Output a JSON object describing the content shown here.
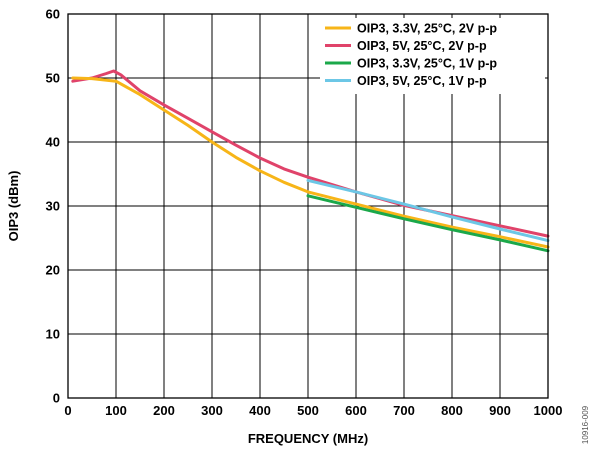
{
  "chart_data": {
    "type": "line",
    "xlabel": "FREQUENCY (MHz)",
    "ylabel": "OIP3 (dBm)",
    "xlim": [
      0,
      1000
    ],
    "ylim": [
      0,
      60
    ],
    "xticks": [
      "0",
      "100",
      "200",
      "300",
      "400",
      "500",
      "600",
      "700",
      "800",
      "900",
      "1000"
    ],
    "yticks": [
      "0",
      "10",
      "20",
      "30",
      "40",
      "50",
      "60"
    ],
    "grid": true,
    "legend_position": "top-right",
    "figure_id": "10916-009",
    "series": [
      {
        "name": "OIP3, 3.3V, 25°C, 2V p-p",
        "color": "#F7B518",
        "x": [
          10,
          50,
          100,
          150,
          200,
          250,
          300,
          350,
          400,
          450,
          500,
          600,
          700,
          800,
          900,
          1000
        ],
        "y": [
          50.0,
          49.9,
          49.5,
          47.4,
          45.0,
          42.6,
          40.0,
          37.6,
          35.5,
          33.7,
          32.2,
          30.3,
          28.4,
          26.7,
          25.2,
          23.6
        ]
      },
      {
        "name": "OIP3, 5V, 25°C, 2V p-p",
        "color": "#E0436A",
        "x": [
          10,
          50,
          80,
          95,
          110,
          150,
          200,
          250,
          300,
          350,
          400,
          450,
          500,
          600,
          700,
          800,
          900,
          1000
        ],
        "y": [
          49.5,
          50.0,
          50.7,
          51.1,
          50.5,
          48.0,
          45.8,
          43.7,
          41.6,
          39.5,
          37.5,
          35.8,
          34.5,
          32.2,
          30.1,
          28.5,
          26.9,
          25.3
        ]
      },
      {
        "name": "OIP3, 3.3V, 25°C, 1V p-p",
        "color": "#1BA84A",
        "x": [
          500,
          600,
          700,
          800,
          900,
          1000
        ],
        "y": [
          31.6,
          29.8,
          28.0,
          26.3,
          24.7,
          23.0
        ]
      },
      {
        "name": "OIP3, 5V, 25°C, 1V p-p",
        "color": "#6CC7E6",
        "x": [
          500,
          600,
          700,
          800,
          900,
          1000
        ],
        "y": [
          34.0,
          32.2,
          30.3,
          28.3,
          26.4,
          24.6
        ]
      }
    ]
  }
}
